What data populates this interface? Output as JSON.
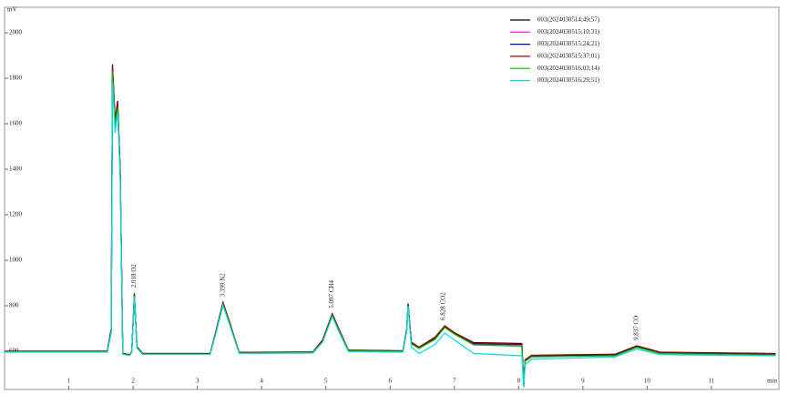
{
  "chart_data": {
    "type": "line",
    "y_label": "mV",
    "x_label": "min",
    "legend": "upper right",
    "xlim": [
      0,
      12.05
    ],
    "ylim": [
      432,
      2112
    ],
    "xticks": [
      1,
      2,
      3,
      4,
      5,
      6,
      7,
      8,
      9,
      10,
      11
    ],
    "yticks": [
      600,
      800,
      1000,
      1200,
      1400,
      1600,
      1800,
      2000
    ],
    "x": [
      0,
      1.6,
      1.66,
      1.68,
      1.72,
      1.76,
      1.8,
      1.84,
      1.95,
      1.98,
      2.02,
      2.06,
      2.15,
      3.2,
      3.3,
      3.4,
      3.5,
      3.65,
      4.8,
      4.95,
      5.1,
      5.2,
      5.35,
      6.2,
      6.26,
      6.28,
      6.33,
      6.45,
      6.7,
      6.85,
      7.0,
      7.3,
      8.05,
      8.08,
      8.1,
      8.2,
      9.5,
      9.84,
      10.2,
      12
    ],
    "series": [
      {
        "name": "003(2024030514;49;57)",
        "color": "#000000",
        "values": [
          600,
          600,
          700,
          1860,
          1620,
          1700,
          1400,
          590,
          585,
          600,
          855,
          620,
          590,
          590,
          700,
          815,
          730,
          595,
          597,
          650,
          765,
          700,
          605,
          602,
          700,
          810,
          640,
          618,
          662,
          712,
          682,
          638,
          634,
          450,
          562,
          582,
          587,
          624,
          596,
          590
        ]
      },
      {
        "name": "003(2024030515;10;31)",
        "color": "#ff00ff",
        "values": [
          598,
          598,
          690,
          1850,
          1610,
          1690,
          1390,
          588,
          583,
          598,
          850,
          618,
          588,
          588,
          695,
          810,
          725,
          593,
          595,
          645,
          760,
          695,
          603,
          600,
          695,
          805,
          635,
          614,
          656,
          708,
          678,
          632,
          628,
          448,
          558,
          578,
          583,
          620,
          593,
          586
        ]
      },
      {
        "name": "003(2024030515;24;21)",
        "color": "#0000a0",
        "values": [
          599,
          599,
          695,
          1840,
          1600,
          1680,
          1380,
          589,
          584,
          599,
          848,
          619,
          589,
          589,
          698,
          812,
          728,
          594,
          596,
          648,
          762,
          698,
          604,
          601,
          698,
          806,
          637,
          616,
          658,
          710,
          680,
          634,
          630,
          449,
          560,
          580,
          584,
          621,
          594,
          587
        ]
      },
      {
        "name": "003(2024030515;37;01)",
        "color": "#a00000",
        "values": [
          600,
          600,
          698,
          1855,
          1615,
          1695,
          1395,
          590,
          585,
          600,
          852,
          620,
          590,
          590,
          699,
          813,
          729,
          595,
          596,
          649,
          763,
          699,
          604,
          601,
          699,
          807,
          638,
          617,
          660,
          711,
          681,
          636,
          632,
          450,
          561,
          581,
          586,
          623,
          595,
          589
        ]
      },
      {
        "name": "003(2024030516;03;14)",
        "color": "#00c000",
        "values": [
          597,
          597,
          685,
          1830,
          1590,
          1670,
          1370,
          587,
          582,
          597,
          845,
          616,
          587,
          587,
          692,
          806,
          722,
          592,
          594,
          642,
          756,
          692,
          602,
          599,
          692,
          800,
          632,
          612,
          652,
          704,
          675,
          628,
          622,
          446,
          555,
          575,
          580,
          617,
          590,
          583
        ]
      },
      {
        "name": "003(2024030516;29;51)",
        "color": "#00dede",
        "values": [
          596,
          596,
          680,
          1780,
          1560,
          1650,
          1360,
          586,
          581,
          596,
          840,
          614,
          586,
          586,
          690,
          800,
          718,
          590,
          592,
          640,
          752,
          688,
          598,
          596,
          688,
          800,
          620,
          590,
          630,
          680,
          650,
          590,
          580,
          440,
          540,
          565,
          575,
          610,
          585,
          580
        ]
      }
    ],
    "annotations": [
      {
        "text": "2.018 O2",
        "x": 2.018
      },
      {
        "text": "3.399 N2",
        "x": 3.399
      },
      {
        "text": "5.097 CH4",
        "x": 5.097
      },
      {
        "text": "6.828 CO2",
        "x": 6.828
      },
      {
        "text": "9.837 CO",
        "x": 9.837
      }
    ]
  }
}
